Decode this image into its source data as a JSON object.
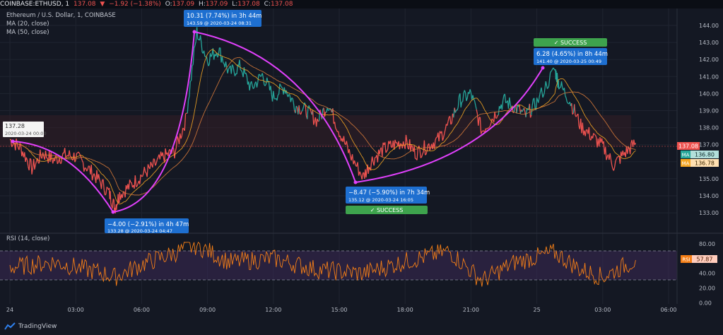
{
  "header": {
    "symbol": "COINBASE:ETHUSD, 1",
    "last": "137.08",
    "arrow": "▼",
    "change": "−1.92 (−1.38%)",
    "o_label": "O:",
    "o": "137.09",
    "h_label": "H:",
    "h": "137.09",
    "l_label": "L:",
    "l": "137.08",
    "c_label": "C:",
    "c": "137.08"
  },
  "legend": {
    "title": "Ethereum / U.S. Dollar, 1, COINBASE",
    "ma20": "MA (20, close)",
    "ma50": "MA (50, close)",
    "rsi": "RSI (14, close)"
  },
  "badges": {
    "price": "137.08",
    "ma1_tag": "MA",
    "ma1": "136.80",
    "ma2_tag": "MA",
    "ma2": "136.78",
    "rsi_tag": "RSI",
    "rsi": "57.87"
  },
  "annotations": {
    "a1_line1": "137.28",
    "a1_line2": "2020-03-24 00:00",
    "a2_line1": "−4.00 (−2.91%) in 4h 47m",
    "a2_line2": "133.28 @ 2020-03-24 04:47",
    "a3_line1": "10.31 (7.74%) in 3h 44m",
    "a3_line2": "143.59 @ 2020-03-24  08:31",
    "a4_line1": "−8.47 (−5.90%) in 7h 34m",
    "a4_line2": "135.12 @ 2020-03-24  16:05",
    "a4_badge": "✓ SUCCESS",
    "a5_line1": "6.28 (4.65%) in 8h 44m",
    "a5_line2": "141.40 @ 2020-03-25  00:49",
    "a5_badge": "✓ SUCCESS"
  },
  "footer": {
    "brand": "TradingView"
  },
  "colors": {
    "bull": "#26a69a",
    "bear": "#ef5350",
    "ma20": "#f5a623",
    "ma50": "#d77a3a",
    "rsi": "#f57f17",
    "path": "#e040fb",
    "success": "#3ea34d",
    "tag_blue": "#1e6fd0"
  },
  "chart_data": {
    "type": "line",
    "series": [
      {
        "name": "ETHUSD",
        "x": [
          "00:00",
          "00:30",
          "01:00",
          "01:30",
          "02:00",
          "02:30",
          "03:00",
          "03:30",
          "04:00",
          "04:30",
          "04:47",
          "05:00",
          "05:30",
          "06:00",
          "06:30",
          "07:00",
          "07:30",
          "08:00",
          "08:31",
          "09:00",
          "09:30",
          "10:00",
          "10:30",
          "11:00",
          "11:30",
          "12:00",
          "12:30",
          "13:00",
          "13:30",
          "14:00",
          "14:30",
          "15:00",
          "15:30",
          "16:05",
          "16:30",
          "17:00",
          "17:30",
          "18:00",
          "18:30",
          "19:00",
          "19:30",
          "20:00",
          "20:30",
          "21:00",
          "21:30",
          "22:00",
          "22:30",
          "23:00",
          "23:30",
          "00:00",
          "00:49",
          "01:00",
          "01:30",
          "02:00",
          "02:30",
          "03:00",
          "03:30",
          "04:00",
          "04:30"
        ],
        "values": [
          137.3,
          136.8,
          135.6,
          136.5,
          136.1,
          136.4,
          136.3,
          135.7,
          135.0,
          134.2,
          133.3,
          134.1,
          134.6,
          135.2,
          135.7,
          136.3,
          136.6,
          138.4,
          143.6,
          142.0,
          142.6,
          141.2,
          141.6,
          140.3,
          141.1,
          139.8,
          140.4,
          139.3,
          139.0,
          138.4,
          139.4,
          137.8,
          136.4,
          135.1,
          136.1,
          136.7,
          137.0,
          137.2,
          136.5,
          136.9,
          137.3,
          138.2,
          139.6,
          140.0,
          137.8,
          138.6,
          139.6,
          139.2,
          138.7,
          139.5,
          141.4,
          140.6,
          139.6,
          138.1,
          137.5,
          136.9,
          135.8,
          136.5,
          137.1
        ]
      },
      {
        "name": "RSI",
        "x": [
          "00:00",
          "02:00",
          "04:00",
          "04:47",
          "06:00",
          "08:31",
          "10:00",
          "12:00",
          "14:00",
          "16:05",
          "18:00",
          "20:00",
          "21:30",
          "23:00",
          "00:49",
          "02:00",
          "03:00",
          "04:30"
        ],
        "values": [
          48,
          55,
          42,
          35,
          52,
          78,
          55,
          60,
          45,
          40,
          56,
          70,
          30,
          55,
          68,
          45,
          35,
          57.87
        ]
      }
    ],
    "x_ticks": [
      "24",
      "03:00",
      "06:00",
      "09:00",
      "12:00",
      "15:00",
      "18:00",
      "21:00",
      "25",
      "03:00",
      "06:00"
    ],
    "y_ticks": [
      "133.00",
      "134.00",
      "135.00",
      "136.00",
      "137.00",
      "138.00",
      "139.00",
      "140.00",
      "141.00",
      "142.00",
      "143.00",
      "144.00"
    ],
    "ylim": [
      132.5,
      144.5
    ],
    "rsi_ticks": [
      "0.00",
      "20.00",
      "40.00",
      "60.00",
      "80.00"
    ],
    "rsi_ylim": [
      0,
      85
    ],
    "rsi_bands": [
      30,
      70
    ]
  }
}
